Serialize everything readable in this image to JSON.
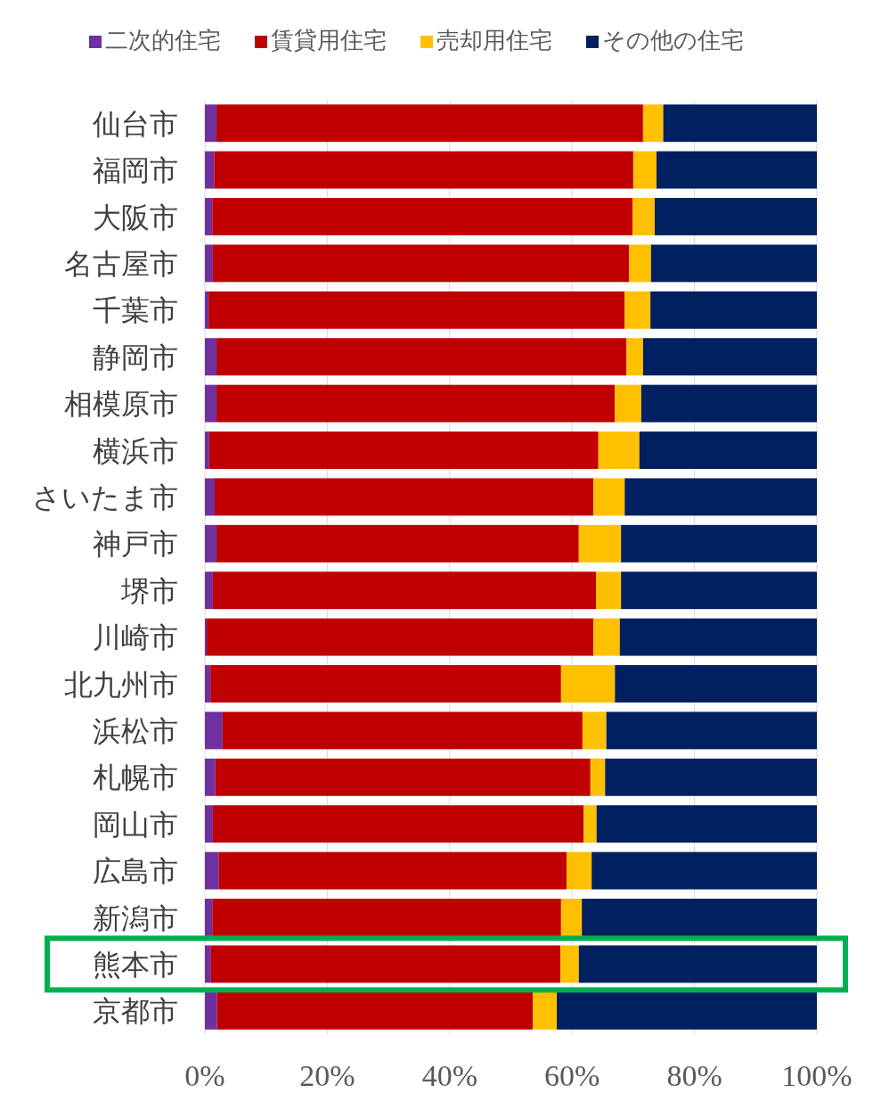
{
  "chart_data": {
    "type": "bar",
    "orientation": "horizontal",
    "stacked": true,
    "categories": [
      "仙台市",
      "福岡市",
      "大阪市",
      "名古屋市",
      "千葉市",
      "静岡市",
      "相模原市",
      "横浜市",
      "さいたま市",
      "神戸市",
      "堺市",
      "川崎市",
      "北九州市",
      "浜松市",
      "札幌市",
      "岡山市",
      "広島市",
      "新潟市",
      "熊本市",
      "京都市"
    ],
    "series": [
      {
        "name": "二次的住宅",
        "color": "#7030a0",
        "values": [
          1.9,
          1.5,
          1.2,
          1.3,
          0.6,
          1.9,
          1.9,
          0.7,
          1.6,
          1.9,
          1.3,
          0.3,
          0.9,
          2.9,
          1.7,
          1.3,
          2.3,
          1.2,
          1.0,
          2.0
        ]
      },
      {
        "name": "賃貸用住宅",
        "color": "#c00000",
        "values": [
          69.7,
          68.5,
          68.7,
          68.0,
          68.0,
          67.0,
          65.1,
          63.6,
          61.9,
          59.2,
          62.6,
          63.2,
          57.3,
          58.8,
          61.3,
          60.6,
          56.8,
          57.0,
          57.1,
          51.6
        ]
      },
      {
        "name": "売却用住宅",
        "color": "#ffc000",
        "values": [
          3.3,
          3.8,
          3.6,
          3.6,
          4.2,
          2.7,
          4.3,
          6.7,
          5.1,
          6.9,
          4.1,
          4.3,
          8.8,
          3.9,
          2.4,
          2.1,
          4.1,
          3.4,
          3.0,
          3.9
        ]
      },
      {
        "name": "その他の住宅",
        "color": "#002060",
        "values": [
          25.1,
          26.2,
          26.5,
          27.1,
          27.2,
          28.4,
          28.7,
          29.0,
          31.4,
          32.0,
          32.0,
          32.2,
          33.0,
          34.4,
          34.6,
          36.0,
          36.8,
          38.4,
          38.9,
          42.5
        ]
      }
    ],
    "xlim": [
      0,
      100
    ],
    "xticks": [
      {
        "value": 0,
        "label": "0%"
      },
      {
        "value": 20,
        "label": "20%"
      },
      {
        "value": 40,
        "label": "40%"
      },
      {
        "value": 60,
        "label": "60%"
      },
      {
        "value": 80,
        "label": "80%"
      },
      {
        "value": 100,
        "label": "100%"
      }
    ],
    "grid": "x",
    "legend": "top"
  }
}
